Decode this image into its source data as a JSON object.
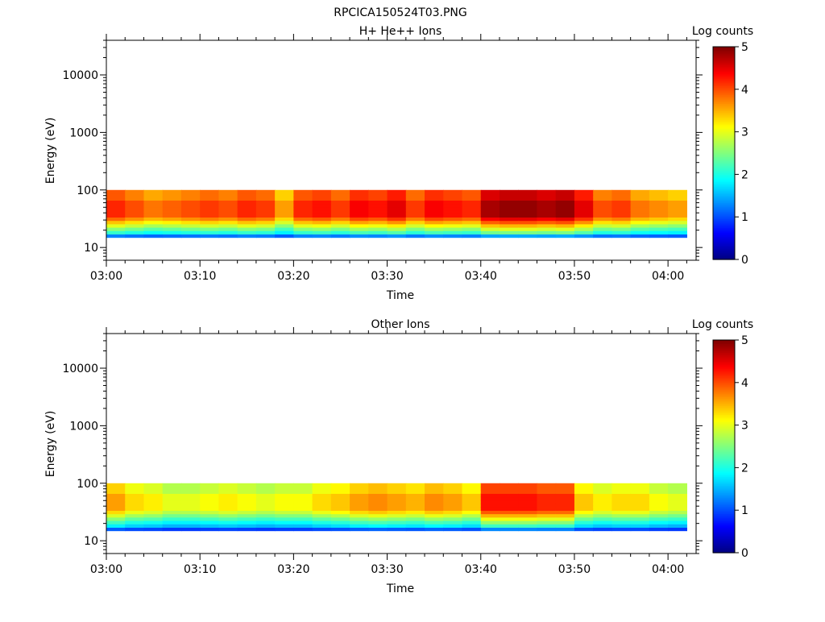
{
  "figure_title": "RPCICA150524T03.PNG",
  "colorbar": {
    "label": "Log counts",
    "ticks": [
      "0",
      "1",
      "2",
      "3",
      "4",
      "5"
    ],
    "colormap": "jet",
    "range": [
      0,
      5
    ]
  },
  "chart_data": [
    {
      "type": "heatmap",
      "title": "H+ He++ Ions",
      "xlabel": "Time",
      "ylabel": "Energy (eV)",
      "xscale": "time",
      "yscale": "log",
      "x_ticks": [
        "03:00",
        "03:10",
        "03:20",
        "03:30",
        "03:40",
        "03:50",
        "04:00"
      ],
      "xlim": [
        "03:00",
        "04:03"
      ],
      "y_ticks": [
        "10",
        "100",
        "1000",
        "10000"
      ],
      "ylim": [
        6,
        40000
      ],
      "energy_range_eV": [
        15,
        100
      ],
      "x": [
        "03:01",
        "03:03",
        "03:05",
        "03:07",
        "03:09",
        "03:11",
        "03:13",
        "03:15",
        "03:17",
        "03:19",
        "03:21",
        "03:23",
        "03:25",
        "03:27",
        "03:29",
        "03:31",
        "03:33",
        "03:35",
        "03:37",
        "03:39",
        "03:41",
        "03:43",
        "03:45",
        "03:47",
        "03:49",
        "03:51",
        "03:53",
        "03:55",
        "03:57",
        "03:59",
        "04:01"
      ],
      "peak_log_counts": [
        4.2,
        4.0,
        3.8,
        3.9,
        4.0,
        4.1,
        4.0,
        4.2,
        4.1,
        3.6,
        4.2,
        4.3,
        4.1,
        4.4,
        4.3,
        4.5,
        4.1,
        4.4,
        4.3,
        4.2,
        4.8,
        4.9,
        4.9,
        4.8,
        4.9,
        4.5,
        4.0,
        4.1,
        3.8,
        3.7,
        3.6
      ]
    },
    {
      "type": "heatmap",
      "title": "Other Ions",
      "xlabel": "Time",
      "ylabel": "Energy (eV)",
      "xscale": "time",
      "yscale": "log",
      "x_ticks": [
        "03:00",
        "03:10",
        "03:20",
        "03:30",
        "03:40",
        "03:50",
        "04:00"
      ],
      "xlim": [
        "03:00",
        "04:03"
      ],
      "y_ticks": [
        "10",
        "100",
        "1000",
        "10000"
      ],
      "ylim": [
        6,
        40000
      ],
      "energy_range_eV": [
        15,
        100
      ],
      "x": [
        "03:01",
        "03:03",
        "03:05",
        "03:07",
        "03:09",
        "03:11",
        "03:13",
        "03:15",
        "03:17",
        "03:19",
        "03:21",
        "03:23",
        "03:25",
        "03:27",
        "03:29",
        "03:31",
        "03:33",
        "03:35",
        "03:37",
        "03:39",
        "03:41",
        "03:43",
        "03:45",
        "03:47",
        "03:49",
        "03:51",
        "03:53",
        "03:55",
        "03:57",
        "03:59",
        "04:01"
      ],
      "peak_log_counts": [
        3.6,
        3.3,
        3.2,
        3.0,
        3.0,
        3.1,
        3.2,
        3.1,
        3.0,
        3.1,
        3.1,
        3.3,
        3.4,
        3.6,
        3.7,
        3.6,
        3.5,
        3.7,
        3.6,
        3.4,
        4.3,
        4.3,
        4.3,
        4.2,
        4.2,
        3.4,
        3.2,
        3.3,
        3.3,
        3.1,
        3.0
      ]
    }
  ]
}
